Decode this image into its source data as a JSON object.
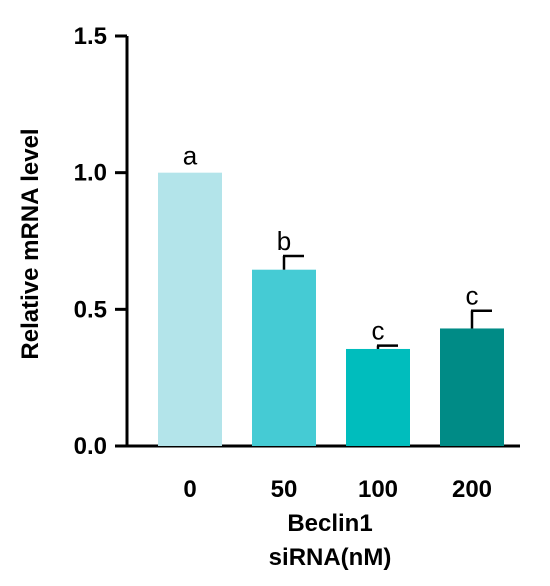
{
  "chart_data": {
    "type": "bar",
    "categories": [
      "0",
      "50",
      "100",
      "200"
    ],
    "values": [
      1.0,
      0.645,
      0.355,
      0.43
    ],
    "errors": [
      0,
      0.05,
      0.012,
      0.065
    ],
    "significance": [
      "a",
      "b",
      "c",
      "c"
    ],
    "colors": [
      "#b3e4ea",
      "#45cbd4",
      "#00bdbd",
      "#008b86"
    ],
    "ylabel": "Relative mRNA level",
    "xlabel_lines": [
      "Beclin1",
      "siRNA(nM)"
    ],
    "ylim": [
      0,
      1.5
    ],
    "yticks": [
      0.0,
      0.5,
      1.0,
      1.5
    ],
    "ytick_labels": [
      "0.0",
      "0.5",
      "1.0",
      "1.5"
    ],
    "grid": false
  }
}
